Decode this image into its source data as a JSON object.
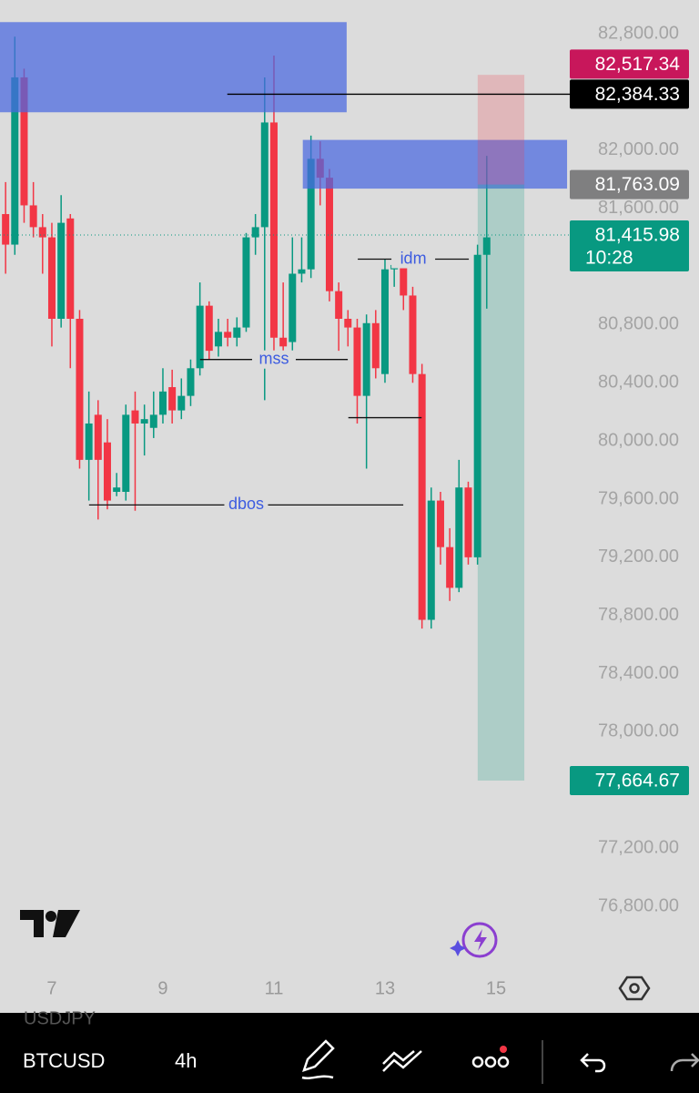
{
  "chart_data": {
    "type": "candlestick",
    "x": [
      6.167,
      6.333,
      6.5,
      6.667,
      6.833,
      7,
      7.167,
      7.333,
      7.5,
      7.667,
      7.833,
      8,
      8.167,
      8.333,
      8.5,
      8.667,
      8.833,
      9,
      9.167,
      9.333,
      9.5,
      9.667,
      9.833,
      10,
      10.167,
      10.333,
      10.5,
      10.667,
      10.833,
      11,
      11.167,
      11.333,
      11.5,
      11.667,
      11.833,
      12,
      12.167,
      12.333,
      12.5,
      12.667,
      12.833,
      13,
      13.167,
      13.333,
      13.5,
      13.667,
      13.833,
      14,
      14.167,
      14.333,
      14.5,
      14.667,
      14.833
    ],
    "open": [
      81560,
      81350,
      82500,
      81620,
      81470,
      81400,
      80840,
      81530,
      80840,
      79870,
      80180,
      79990,
      79650,
      79650,
      80210,
      80120,
      80090,
      80180,
      80370,
      80210,
      80310,
      80500,
      80930,
      80650,
      80750,
      80710,
      80780,
      81400,
      81470,
      82190,
      80710,
      80680,
      81150,
      81180,
      81940,
      81810,
      81030,
      80840,
      80780,
      80310,
      80810,
      80460,
      81180,
      81210,
      81000,
      80460,
      78770,
      79590,
      79270,
      78990,
      79680,
      79200,
      81280
    ],
    "high": [
      81780,
      82780,
      82560,
      81780,
      81560,
      81500,
      81690,
      81560,
      80900,
      80340,
      80280,
      80150,
      79780,
      80250,
      80340,
      80250,
      80340,
      80500,
      80490,
      80430,
      80560,
      81090,
      80960,
      80840,
      80840,
      80850,
      81430,
      81560,
      82500,
      82650,
      81090,
      81400,
      81400,
      82100,
      82060,
      81870,
      81090,
      80900,
      80840,
      80870,
      80900,
      81250,
      81280,
      81280,
      81060,
      80530,
      79680,
      79650,
      79400,
      79870,
      79720,
      81350,
      81960
    ],
    "low": [
      81150,
      81280,
      81500,
      81400,
      81150,
      80650,
      80780,
      80500,
      79810,
      79590,
      79460,
      79530,
      79620,
      79590,
      79520,
      79900,
      80020,
      80120,
      80120,
      80150,
      80240,
      80450,
      80560,
      80580,
      80650,
      80650,
      80750,
      81280,
      80280,
      80620,
      80560,
      80600,
      81090,
      81120,
      81620,
      80960,
      80620,
      80650,
      80120,
      79810,
      80430,
      80400,
      81060,
      80900,
      80400,
      78710,
      78710,
      79150,
      78900,
      78960,
      79150,
      79150,
      80910
    ],
    "close": [
      81350,
      82500,
      81620,
      81470,
      81400,
      80840,
      81500,
      80840,
      79870,
      80120,
      79870,
      79590,
      79680,
      80180,
      80120,
      80150,
      80180,
      80340,
      80210,
      80310,
      80500,
      80930,
      80620,
      80750,
      80710,
      80780,
      81400,
      81470,
      82190,
      80710,
      80650,
      81150,
      81180,
      81940,
      81810,
      81030,
      80840,
      80780,
      80310,
      80810,
      80500,
      81180,
      81210,
      81000,
      80460,
      78770,
      79590,
      79270,
      78990,
      79680,
      79200,
      81280,
      81400
    ],
    "up_color": "#089981",
    "down_color": "#f23645",
    "xlim": [
      6.066,
      16.23
    ],
    "xticks": [
      7,
      9,
      11,
      13,
      15
    ],
    "ylim": [
      76362,
      83032
    ],
    "yticks": [
      {
        "value": 82800,
        "label": "82,800.00"
      },
      {
        "value": 82000,
        "label": "82,000.00"
      },
      {
        "value": 81600,
        "label": "81,600.00"
      },
      {
        "value": 80800,
        "label": "80,800.00"
      },
      {
        "value": 80400,
        "label": "80,400.00"
      },
      {
        "value": 80000,
        "label": "80,000.00"
      },
      {
        "value": 79600,
        "label": "79,600.00"
      },
      {
        "value": 79200,
        "label": "79,200.00"
      },
      {
        "value": 78800,
        "label": "78,800.00"
      },
      {
        "value": 78400,
        "label": "78,400.00"
      },
      {
        "value": 78000,
        "label": "78,000.00"
      },
      {
        "value": 77200,
        "label": "77,200.00"
      },
      {
        "value": 76800,
        "label": "76,800.00"
      }
    ],
    "zones": [
      {
        "x": [
          6.066,
          12.31
        ],
        "y": [
          82260,
          82880
        ],
        "color": "#4a68e0"
      },
      {
        "x": [
          11.52,
          16.28
        ],
        "y": [
          81735,
          82070
        ],
        "color": "#4a68e0"
      }
    ],
    "annotations": [
      {
        "text": "idm",
        "y": 81250,
        "x": [
          12.51,
          14.51
        ]
      },
      {
        "text": "mss",
        "y": 80560,
        "x": [
          9.67,
          12.33
        ]
      },
      {
        "text": "dbos",
        "y": 79560,
        "x": [
          7.67,
          13.33
        ]
      },
      {
        "y": 80160,
        "x": [
          12.34,
          13.66
        ]
      }
    ],
    "annotation_color": "#3d5ce0",
    "position": {
      "x": [
        14.67,
        15.51
      ],
      "stop_color": "#f23645",
      "target_color": "#089981"
    },
    "price_labels": [
      {
        "value": 82517.34,
        "label": "82,517.34",
        "color": "#c8175b"
      },
      {
        "value": 82384.33,
        "label": "82,384.33",
        "color": "#000000",
        "from_x": 10.16
      },
      {
        "value": 81763.09,
        "label": "81,763.09",
        "color": "#7f7f80"
      },
      {
        "value": 81415.98,
        "label": "81,415.98",
        "countdown": "10:28",
        "color": "#089981"
      },
      {
        "value": 77664.67,
        "label": "77,664.67",
        "color": "#089981"
      }
    ]
  },
  "watermark_symbol": "USDJPY",
  "toolbar": {
    "symbol": "BTCUSD",
    "interval": "4h"
  }
}
